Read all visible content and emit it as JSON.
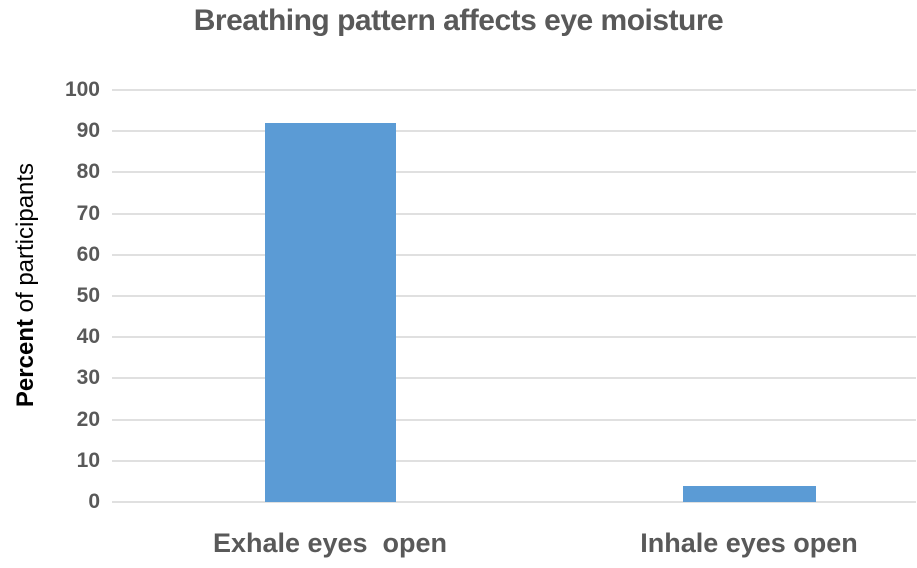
{
  "chart_data": {
    "type": "bar",
    "title": "Breathing pattern affects eye moisture",
    "categories": [
      "Exhale eyes  open",
      "Inhale eyes open"
    ],
    "values": [
      92,
      4
    ],
    "ylabel": "Percent of participants",
    "ylabel_bold_part": "Percent",
    "ylabel_regular_part": " of participants",
    "xlabel": "",
    "ylim": [
      0,
      100
    ],
    "yticks": [
      0,
      10,
      20,
      30,
      40,
      50,
      60,
      70,
      80,
      90,
      100
    ],
    "grid": "horizontal",
    "legend": "none",
    "colors": {
      "bar_fill": "#5b9bd5",
      "gridline": "#e0e0e0",
      "title_text": "#595959",
      "tick_text": "#595959",
      "category_text": "#595959",
      "axis_title_text": "#000000",
      "background": "#ffffff"
    }
  }
}
